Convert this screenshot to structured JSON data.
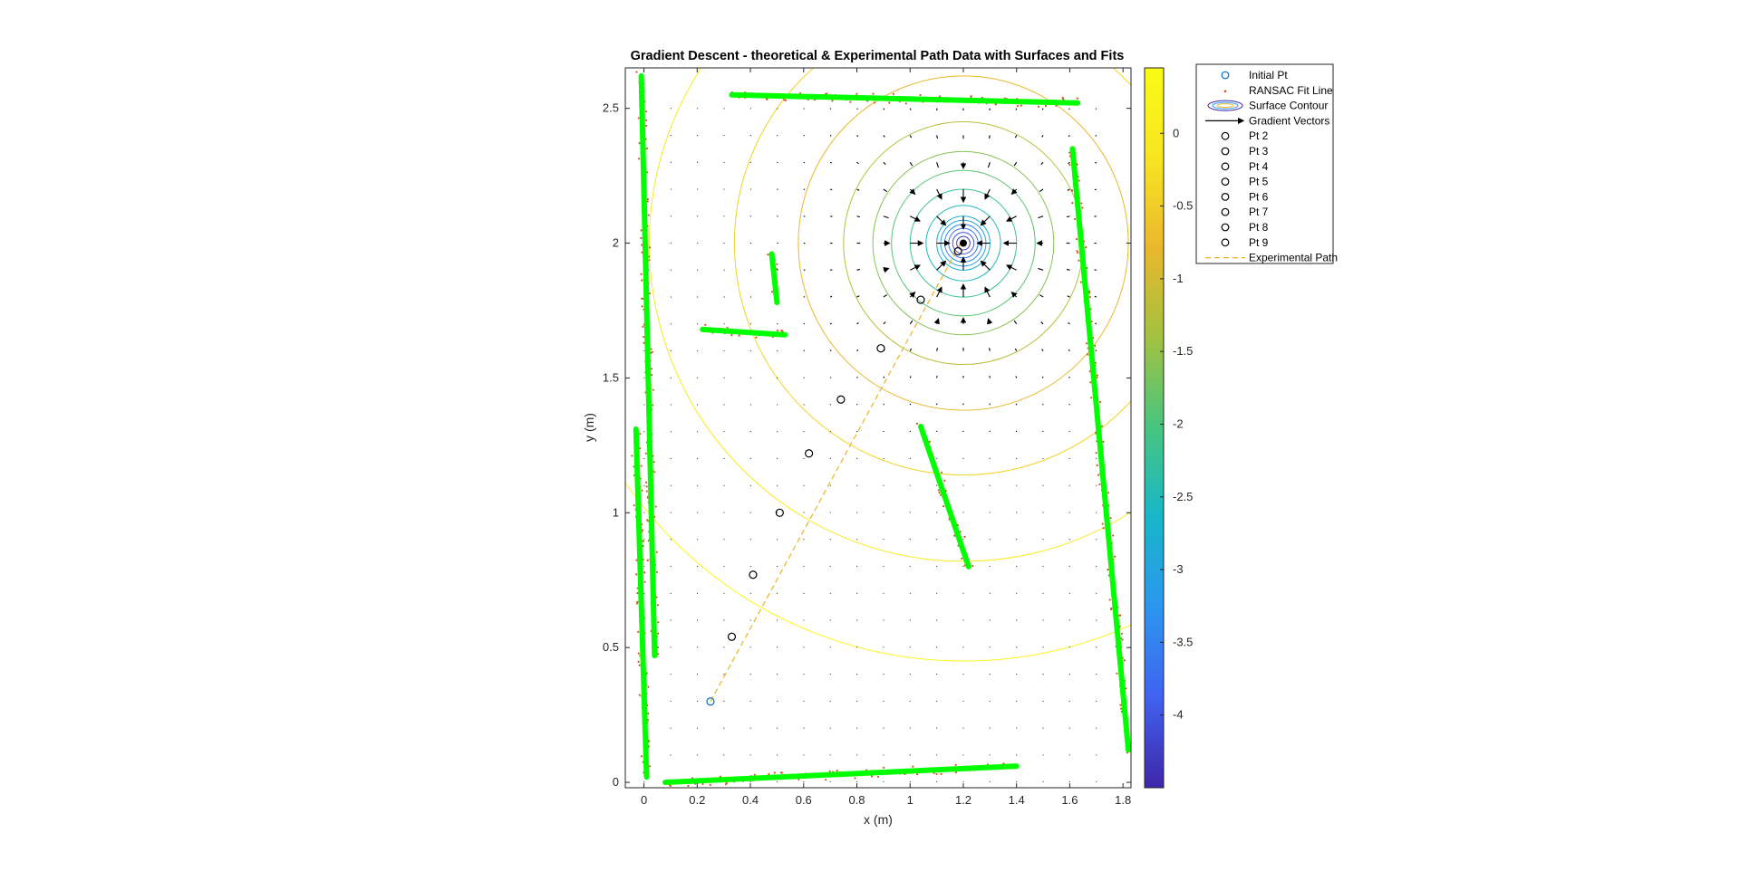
{
  "chart_data": {
    "type": "scatter",
    "title": "Gradient Descent - theoretical & Experimental Path Data with Surfaces and Fits",
    "xlabel": "x (m)",
    "ylabel": "y (m)",
    "xlim": [
      -0.07,
      1.83
    ],
    "ylim": [
      -0.02,
      2.65
    ],
    "xticks": [
      0,
      0.2,
      0.4,
      0.6,
      0.8,
      1,
      1.2,
      1.4,
      1.6,
      1.8
    ],
    "xtick_labels": [
      "0",
      "0.2",
      "0.4",
      "0.6",
      "0.8",
      "1",
      "1.2",
      "1.4",
      "1.6",
      "1.8"
    ],
    "yticks": [
      0,
      0.5,
      1,
      1.5,
      2,
      2.5
    ],
    "ytick_labels": [
      "0",
      "0.5",
      "1",
      "1.5",
      "2",
      "2.5"
    ],
    "grid": false,
    "legend_position": "outside-right",
    "colorbar": {
      "range": [
        -4.5,
        0.45
      ],
      "ticks": [
        0,
        -0.5,
        -1,
        -1.5,
        -2,
        -2.5,
        -3,
        -3.5,
        -4
      ],
      "tick_labels": [
        "0",
        "-0.5",
        "-1",
        "-1.5",
        "-2",
        "-2.5",
        "-3",
        "-3.5",
        "-4"
      ],
      "colormap": [
        "#3e26a8",
        "#4062f0",
        "#2c96ee",
        "#17b6c9",
        "#47c580",
        "#a2c140",
        "#eab82c",
        "#f7e521",
        "#f9fb15"
      ]
    },
    "legend": [
      {
        "label": "Initial Pt",
        "marker": "circle",
        "color": "#0072bd"
      },
      {
        "label": "RANSAC Fit Line",
        "marker": "dot",
        "color": "#d95319"
      },
      {
        "label": "Surface Contour",
        "marker": "ellipse",
        "color": "#a2c140"
      },
      {
        "label": "Gradient Vectors",
        "marker": "arrow",
        "color": "#000000"
      },
      {
        "label": "Pt 2",
        "marker": "circle",
        "color": "#000000"
      },
      {
        "label": "Pt 3",
        "marker": "circle",
        "color": "#000000"
      },
      {
        "label": "Pt 4",
        "marker": "circle",
        "color": "#000000"
      },
      {
        "label": "Pt 5",
        "marker": "circle",
        "color": "#000000"
      },
      {
        "label": "Pt 6",
        "marker": "circle",
        "color": "#000000"
      },
      {
        "label": "Pt 7",
        "marker": "circle",
        "color": "#000000"
      },
      {
        "label": "Pt 8",
        "marker": "circle",
        "color": "#000000"
      },
      {
        "label": "Pt 9",
        "marker": "circle",
        "color": "#000000"
      },
      {
        "label": "Experimental Path",
        "marker": "dash",
        "color": "#edb120"
      }
    ],
    "goal": {
      "x": 1.2,
      "y": 2.0
    },
    "initial_point": {
      "x": 0.25,
      "y": 0.3
    },
    "path_points": [
      {
        "name": "Pt 2",
        "x": 0.33,
        "y": 0.54
      },
      {
        "name": "Pt 3",
        "x": 0.41,
        "y": 0.77
      },
      {
        "name": "Pt 4",
        "x": 0.51,
        "y": 1.0
      },
      {
        "name": "Pt 5",
        "x": 0.62,
        "y": 1.22
      },
      {
        "name": "Pt 6",
        "x": 0.74,
        "y": 1.42
      },
      {
        "name": "Pt 7",
        "x": 0.89,
        "y": 1.61
      },
      {
        "name": "Pt 8",
        "x": 1.04,
        "y": 1.79
      },
      {
        "name": "Pt 9",
        "x": 1.18,
        "y": 1.97
      }
    ],
    "experimental_path": {
      "x": [
        0.25,
        1.19
      ],
      "y": [
        0.3,
        2.0
      ]
    },
    "ransac_fit_lines": [
      {
        "x": [
          -0.01,
          0.04
        ],
        "y": [
          2.62,
          0.47
        ]
      },
      {
        "x": [
          -0.03,
          0.01
        ],
        "y": [
          1.31,
          0.02
        ]
      },
      {
        "x": [
          0.33,
          1.63
        ],
        "y": [
          2.55,
          2.52
        ]
      },
      {
        "x": [
          0.08,
          1.4
        ],
        "y": [
          0.0,
          0.06
        ]
      },
      {
        "x": [
          1.61,
          1.82
        ],
        "y": [
          2.35,
          0.12
        ]
      },
      {
        "x": [
          0.48,
          0.5
        ],
        "y": [
          1.96,
          1.78
        ]
      },
      {
        "x": [
          0.22,
          0.53
        ],
        "y": [
          1.68,
          1.66
        ]
      },
      {
        "x": [
          1.04,
          1.22
        ],
        "y": [
          1.32,
          0.8
        ]
      }
    ],
    "contour_levels": [
      -4.3,
      -4.0,
      -3.7,
      -3.4,
      -3.1,
      -2.8,
      -2.5,
      -2.2,
      -1.9,
      -1.6,
      -1.2,
      -0.8,
      -0.4,
      0.0,
      0.35
    ],
    "contour_radii": [
      0.025,
      0.04,
      0.055,
      0.07,
      0.085,
      0.1,
      0.14,
      0.2,
      0.27,
      0.34,
      0.45,
      0.62,
      0.86,
      1.18,
      1.55
    ]
  }
}
